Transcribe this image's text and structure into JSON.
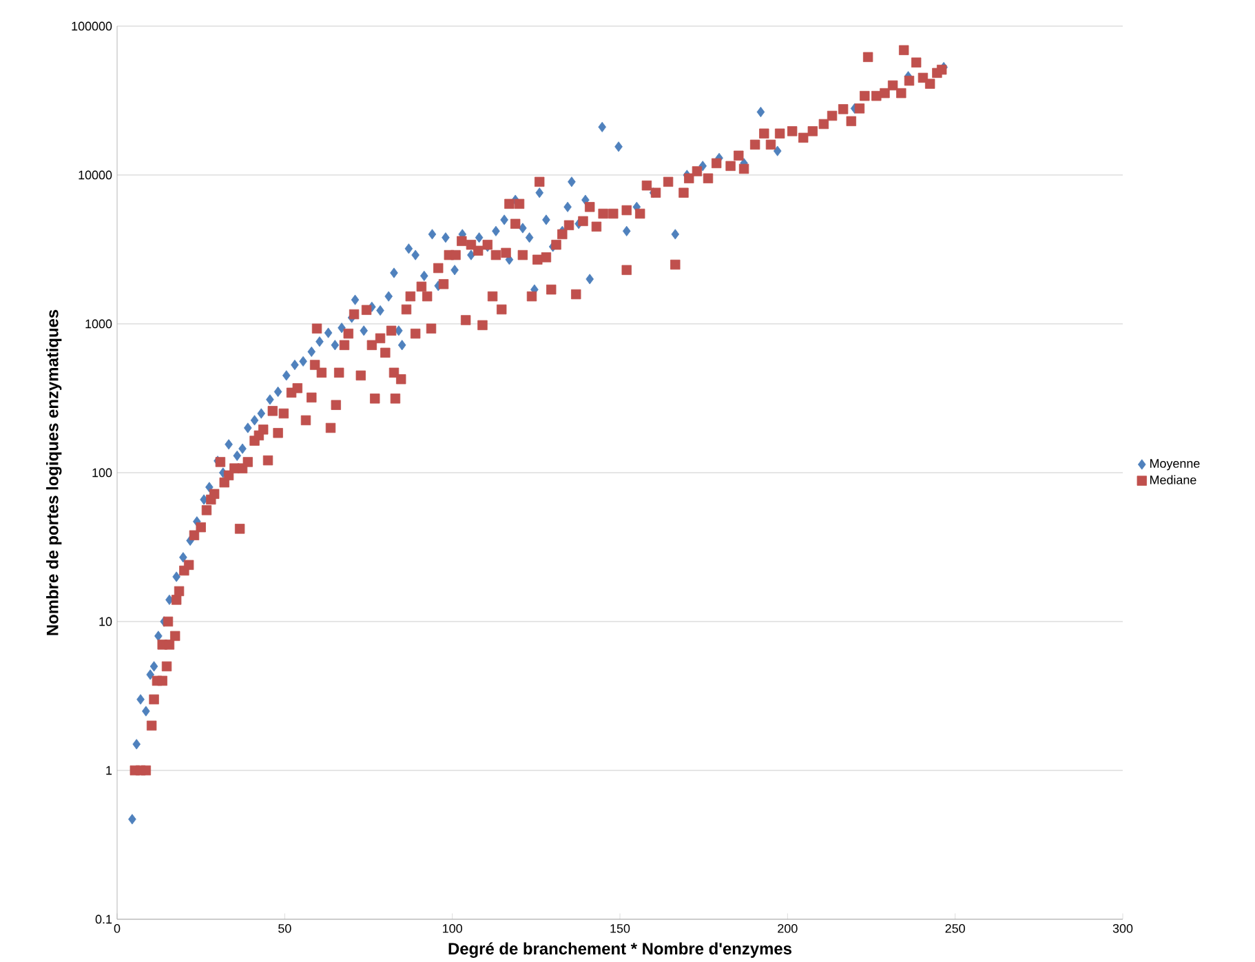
{
  "chart_data": {
    "type": "scatter",
    "xlabel": "Degré de branchement * Nombre d'enzymes",
    "ylabel": "Nombre de portes logiques enzymatiques",
    "xlim": [
      0,
      300
    ],
    "xticks": [
      0,
      50,
      100,
      150,
      200,
      250,
      300
    ],
    "ylim": [
      0.1,
      100000
    ],
    "yticks": [
      0.1,
      1,
      10,
      100,
      1000,
      10000,
      100000
    ],
    "log": "y",
    "grid": "y",
    "legend": "right",
    "series": [
      {
        "name": "Moyenne",
        "color": "#4f81bd",
        "marker": "diamond",
        "x": [
          4.5,
          5.8,
          7,
          8.6,
          9.9,
          11,
          12.3,
          14,
          15.6,
          17.7,
          19.7,
          21.8,
          23.8,
          25.9,
          27.5,
          30,
          31.6,
          33.3,
          35.8,
          37.4,
          39,
          41,
          43,
          45.6,
          48,
          50.5,
          53,
          55.5,
          58,
          60.4,
          63,
          65,
          67,
          70,
          71,
          73.6,
          76,
          78.5,
          81,
          82.6,
          84,
          85,
          87,
          89,
          91.6,
          94,
          95.8,
          98,
          100.7,
          103,
          105.6,
          108,
          110.5,
          113,
          115.5,
          117,
          118.8,
          121,
          123,
          124.5,
          126,
          128,
          130,
          132.8,
          134.4,
          135.6,
          137.7,
          139.7,
          141,
          144.7,
          149.6,
          152,
          155,
          160,
          166.5,
          170,
          174.7,
          179.6,
          187,
          192,
          197,
          207.5,
          220,
          236,
          246.6
        ],
        "values": [
          0.47,
          1.5,
          3,
          2.5,
          4.4,
          5,
          8,
          10,
          14,
          20,
          27,
          35,
          47,
          66,
          80,
          120,
          100,
          155,
          130,
          145,
          200,
          225,
          250,
          310,
          350,
          450,
          530,
          560,
          650,
          760,
          870,
          720,
          940,
          1100,
          1450,
          900,
          1300,
          1230,
          1530,
          2200,
          900,
          720,
          3200,
          2900,
          2100,
          4000,
          1800,
          3800,
          2300,
          4000,
          2900,
          3800,
          3300,
          4200,
          5000,
          2700,
          6800,
          4400,
          3800,
          1700,
          7600,
          5000,
          3300,
          4200,
          6100,
          9000,
          4700,
          6800,
          2000,
          21000,
          15500,
          4200,
          6100,
          7600,
          4000,
          10000,
          11500,
          13000,
          12000,
          26500,
          14500,
          null,
          28000,
          46000,
          53000
        ]
      },
      {
        "name": "Mediane",
        "color": "#c0504d",
        "marker": "square",
        "x": [
          5.3,
          7,
          8.6,
          10.3,
          11,
          11.9,
          13.5,
          14.8,
          13.5,
          15.6,
          17.3,
          15.2,
          17.7,
          18.5,
          20,
          21.4,
          23,
          25,
          26.7,
          28,
          29,
          30.8,
          32,
          33.3,
          35,
          36.6,
          37.4,
          39,
          41,
          42.3,
          43.6,
          45,
          46.4,
          48,
          49.7,
          52,
          53.8,
          56.3,
          58,
          59,
          59.6,
          61,
          63.7,
          65.3,
          66.2,
          67.8,
          69,
          70.7,
          72.7,
          74.4,
          76,
          76.9,
          78.5,
          80,
          81.8,
          82.6,
          83,
          84.7,
          86.3,
          87.5,
          89,
          90.8,
          92.5,
          93.7,
          95.8,
          97.4,
          99,
          101,
          102.8,
          104,
          105.6,
          107.7,
          109,
          110.5,
          112,
          113,
          114.7,
          116,
          117,
          118.8,
          120,
          121,
          123.7,
          125.4,
          126,
          128,
          129.5,
          131,
          132.8,
          134.8,
          136.9,
          139,
          141,
          143,
          145,
          148,
          152,
          152,
          156,
          158,
          160.7,
          164.4,
          166.5,
          169,
          170.6,
          173,
          176.3,
          178.8,
          183,
          185.4,
          187,
          190.3,
          193,
          195,
          197.7,
          201.4,
          204.7,
          207.5,
          210.8,
          213.3,
          216.6,
          219,
          221.5,
          223,
          224,
          226.5,
          229,
          231.4,
          233.9,
          234.7,
          236.3,
          238.4,
          240.4,
          242.5,
          244.6,
          246
        ],
        "values": [
          1,
          1,
          1,
          2,
          3,
          4,
          4,
          5,
          7,
          7,
          8,
          10,
          14,
          16,
          22,
          24,
          38,
          43,
          56,
          66,
          72,
          118,
          86,
          96,
          107,
          42,
          107,
          118,
          164,
          178,
          195,
          121,
          260,
          185,
          250,
          345,
          370,
          225,
          320,
          530,
          930,
          470,
          200,
          285,
          470,
          720,
          860,
          1160,
          450,
          1240,
          720,
          315,
          800,
          640,
          900,
          470,
          315,
          425,
          1250,
          1530,
          860,
          1780,
          1530,
          930,
          2370,
          1850,
          2900,
          2900,
          3600,
          1060,
          3400,
          3100,
          980,
          3400,
          1530,
          2900,
          1250,
          3000,
          6400,
          4700,
          6400,
          2900,
          1530,
          2700,
          9000,
          2800,
          1700,
          3400,
          4000,
          4600,
          1580,
          4900,
          6100,
          4500,
          5500,
          5500,
          2300,
          5800,
          5500,
          8500,
          7600,
          9000,
          2500,
          7600,
          9500,
          10600,
          9500,
          12000,
          11500,
          13500,
          11000,
          16000,
          19000,
          16000,
          19000,
          19700,
          17800,
          19700,
          22000,
          25000,
          27700,
          23000,
          28000,
          34000,
          62000,
          34000,
          35500,
          40000,
          35500,
          69000,
          43000,
          57000,
          45000,
          41000,
          48500,
          51000
        ]
      }
    ]
  }
}
